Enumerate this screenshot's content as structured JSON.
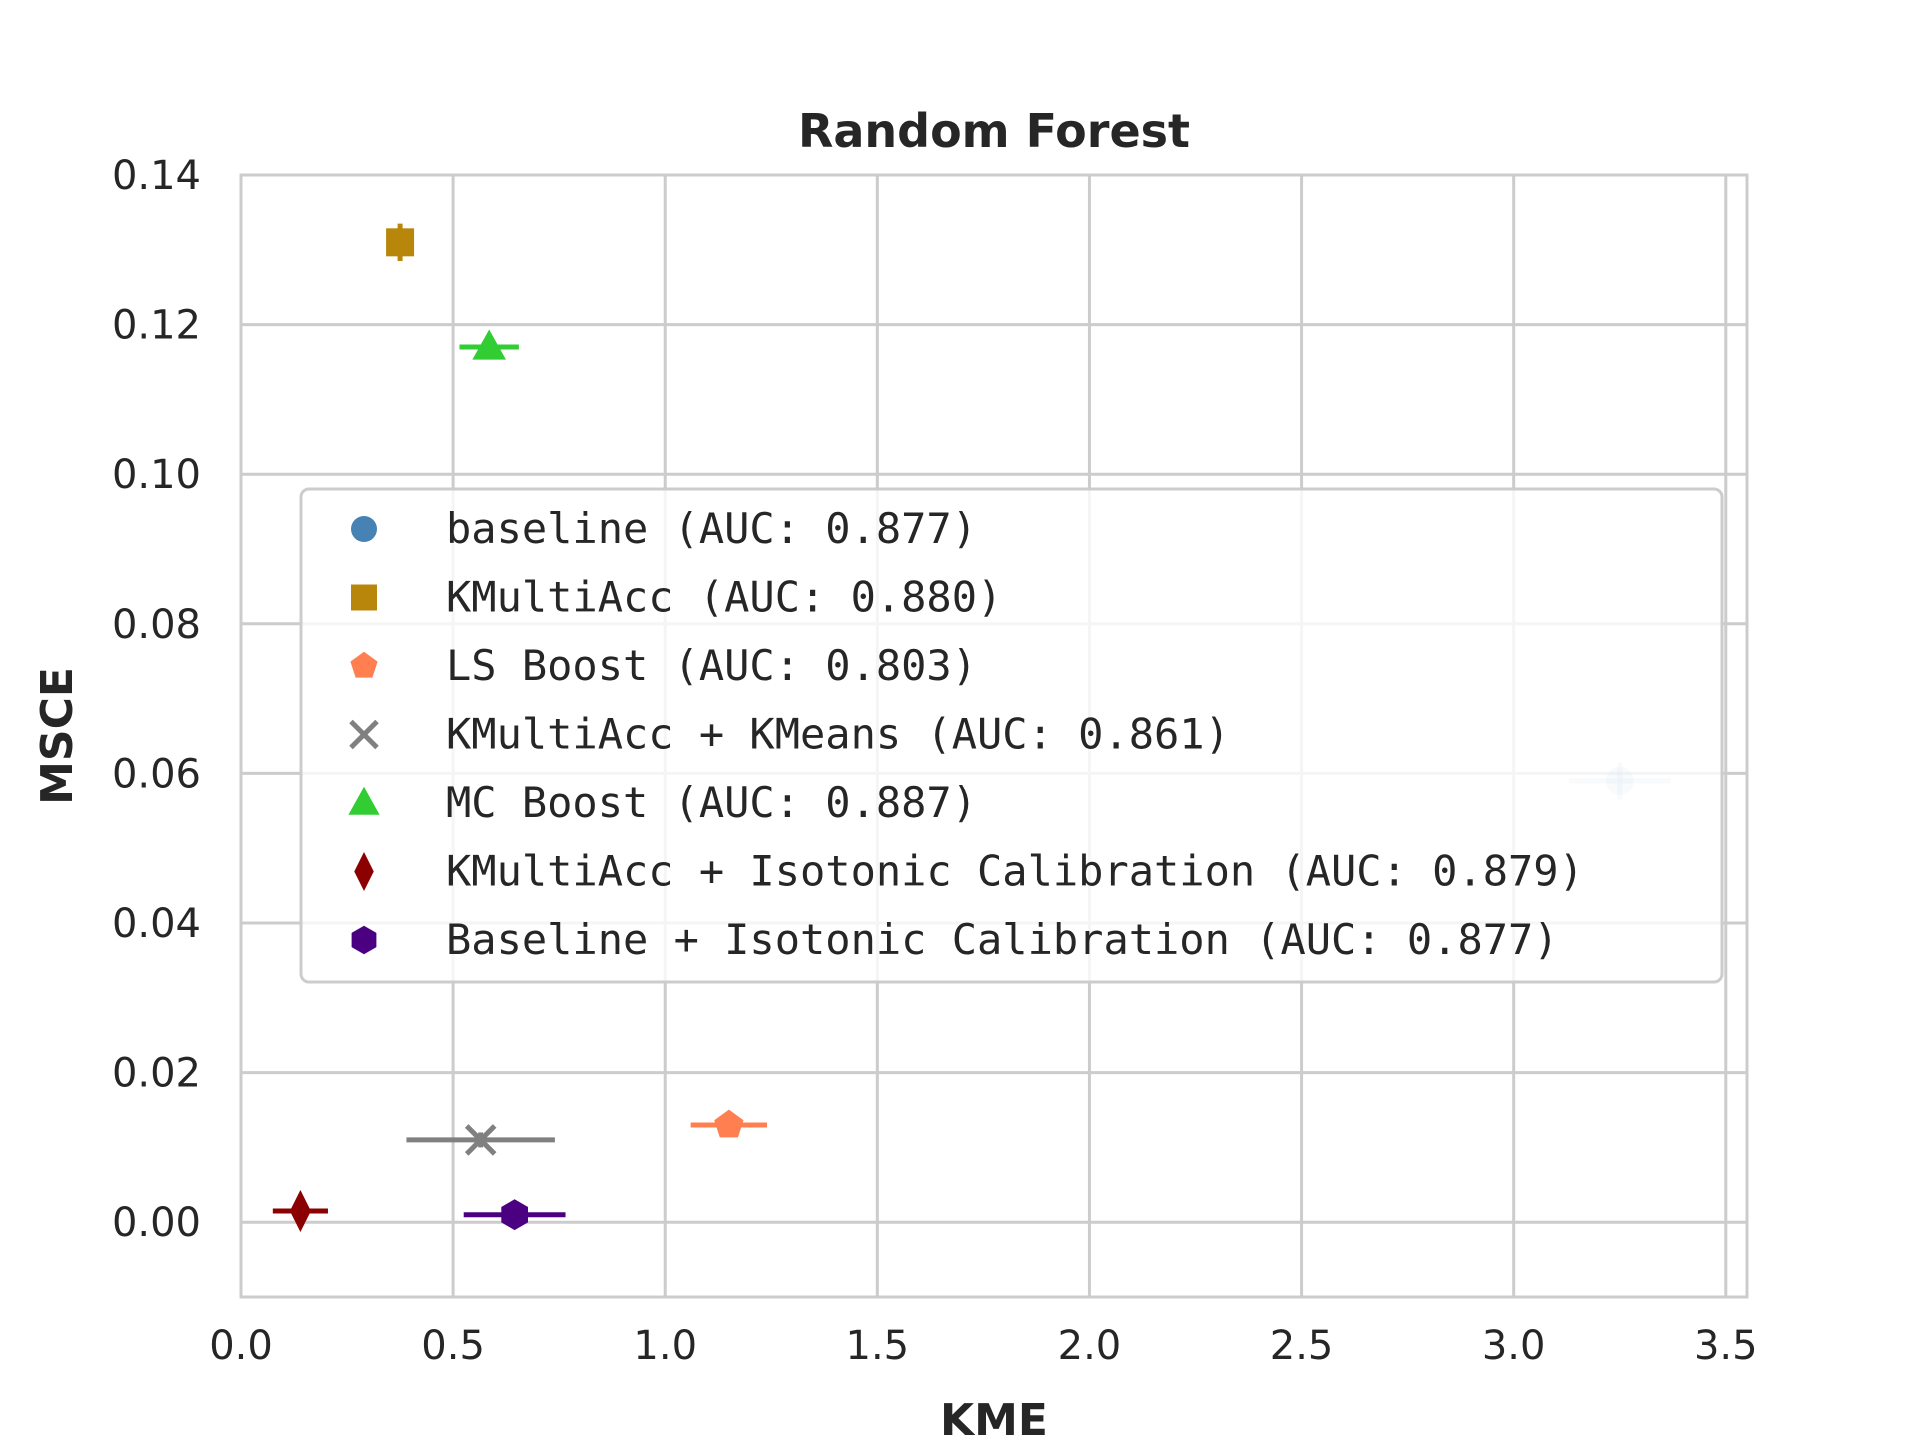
{
  "chart_data": {
    "type": "scatter",
    "title": "Random Forest",
    "xlabel": "KME",
    "ylabel": "MSCE",
    "xlim": [
      0.0,
      3.55
    ],
    "ylim": [
      -0.01,
      0.14
    ],
    "xticks": [
      "0.0",
      "0.5",
      "1.0",
      "1.5",
      "2.0",
      "2.5",
      "3.0",
      "3.5"
    ],
    "yticks": [
      "0.00",
      "0.02",
      "0.04",
      "0.06",
      "0.08",
      "0.10",
      "0.12",
      "0.14"
    ],
    "grid": true,
    "legend_position": "center",
    "series": [
      {
        "name": "baseline (AUC: 0.877)",
        "marker": "circle",
        "color": "#4682B4",
        "x": 3.25,
        "y": 0.059,
        "xerr": 0.12,
        "yerr": 0.0025,
        "alpha": 0.2
      },
      {
        "name": "KMultiAcc (AUC: 0.880)",
        "marker": "square",
        "color": "#B8860B",
        "x": 0.375,
        "y": 0.131,
        "xerr": 0.0,
        "yerr": 0.0025,
        "alpha": 1
      },
      {
        "name": "LS Boost (AUC: 0.803)",
        "marker": "pentagon",
        "color": "#FF7F50",
        "x": 1.15,
        "y": 0.013,
        "xerr": 0.09,
        "yerr": 0.0005,
        "alpha": 1
      },
      {
        "name": "KMultiAcc + KMeans (AUC: 0.861)",
        "marker": "x",
        "color": "#808080",
        "x": 0.565,
        "y": 0.011,
        "xerr": 0.175,
        "yerr": 0.001,
        "alpha": 1
      },
      {
        "name": "MC Boost (AUC: 0.887)",
        "marker": "triangle",
        "color": "#32CD32",
        "x": 0.585,
        "y": 0.117,
        "xerr": 0.07,
        "yerr": 0.0005,
        "alpha": 1
      },
      {
        "name": "KMultiAcc + Isotonic Calibration (AUC: 0.879)",
        "marker": "diamond",
        "color": "#8B0000",
        "x": 0.14,
        "y": 0.0015,
        "xerr": 0.065,
        "yerr": 0.0005,
        "alpha": 1
      },
      {
        "name": "Baseline + Isotonic Calibration (AUC: 0.877)",
        "marker": "hexagon",
        "color": "#4B0082",
        "x": 0.645,
        "y": 0.001,
        "xerr": 0.12,
        "yerr": 0.0003,
        "alpha": 1
      }
    ]
  }
}
